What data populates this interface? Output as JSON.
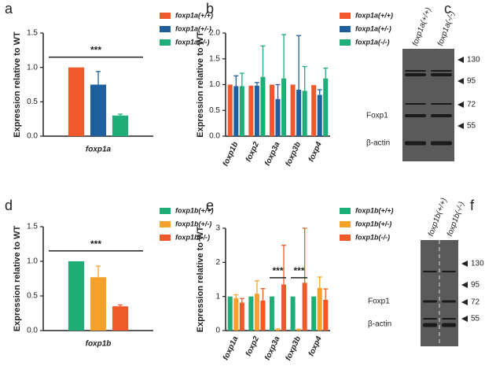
{
  "chart_data": [
    {
      "type": "bar",
      "panel": "a",
      "y_label": "Expression relative to WT",
      "categories": [
        "foxp1a"
      ],
      "series": [
        {
          "name": "foxp1a(+/+)",
          "color": "#f0592b",
          "values": [
            1.0
          ]
        },
        {
          "name": "foxp1a(+/-)",
          "color": "#1f5f9e",
          "values": [
            0.75
          ],
          "errors": [
            0.19
          ]
        },
        {
          "name": "foxp1a(-/-)",
          "color": "#1fae78",
          "values": [
            0.3
          ],
          "errors": [
            0.02
          ]
        }
      ],
      "ylim": [
        0,
        1.5
      ],
      "yticks": [
        {
          "value": 0,
          "label": "0.0"
        },
        {
          "value": 0.5,
          "label": "0.5"
        },
        {
          "value": 1,
          "label": "1.0"
        },
        {
          "value": 1.5,
          "label": "1.5"
        }
      ],
      "annotations": [
        "***"
      ]
    },
    {
      "type": "bar",
      "panel": "b",
      "y_label": "Expression relative to WT",
      "categories": [
        "foxp1b",
        "foxp2",
        "foxp3a",
        "foxp3b",
        "foxp4"
      ],
      "series": [
        {
          "name": "foxp1a(+/+)",
          "color": "#f0592b",
          "values": [
            1.0,
            0.98,
            1.0,
            1.0,
            0.99
          ]
        },
        {
          "name": "foxp1a(+/-)",
          "color": "#1f5f9e",
          "values": [
            0.97,
            0.98,
            0.72,
            0.9,
            0.8
          ],
          "errors": [
            0.2,
            0.06,
            0.28,
            1.05,
            0.1
          ]
        },
        {
          "name": "foxp1a(-/-)",
          "color": "#1fae78",
          "values": [
            0.97,
            1.15,
            1.12,
            0.88,
            1.12
          ],
          "errors": [
            0.25,
            0.6,
            0.85,
            0.47,
            0.2
          ]
        }
      ],
      "ylim": [
        0,
        2
      ],
      "yticks": [
        {
          "value": 0,
          "label": "0.0"
        },
        {
          "value": 0.5,
          "label": "0.5"
        },
        {
          "value": 1,
          "label": "1.0"
        },
        {
          "value": 1.5,
          "label": "1.5"
        },
        {
          "value": 2,
          "label": "2.0"
        }
      ]
    },
    {
      "type": "bar",
      "panel": "d",
      "y_label": "Expression relative to WT",
      "categories": [
        "foxp1b"
      ],
      "series": [
        {
          "name": "foxp1b(+/+)",
          "color": "#1fae78",
          "values": [
            1.0
          ]
        },
        {
          "name": "foxp1b(+/-)",
          "color": "#f7a12c",
          "values": [
            0.77
          ],
          "errors": [
            0.16
          ]
        },
        {
          "name": "foxp1b(-/-)",
          "color": "#ee5a2a",
          "values": [
            0.35
          ],
          "errors": [
            0.02
          ]
        }
      ],
      "ylim": [
        0,
        1.5
      ],
      "yticks": [
        {
          "value": 0,
          "label": "0.0"
        },
        {
          "value": 0.5,
          "label": "0.5"
        },
        {
          "value": 1,
          "label": "1.0"
        },
        {
          "value": 1.5,
          "label": "1.5"
        }
      ],
      "annotations": [
        "***"
      ]
    },
    {
      "type": "bar",
      "panel": "e",
      "y_label": "Expression relative to WT",
      "categories": [
        "foxp1a",
        "foxp2",
        "foxp3a",
        "foxp3b",
        "foxp4"
      ],
      "series": [
        {
          "name": "foxp1b(+/+)",
          "color": "#1fae78",
          "values": [
            1.0,
            1.0,
            1.0,
            1.0,
            1.0
          ]
        },
        {
          "name": "foxp1b(+/-)",
          "color": "#f7a12c",
          "values": [
            0.95,
            1.08,
            0.03,
            0.02,
            1.25
          ],
          "errors": [
            0.1,
            0.38,
            0.02,
            0.02,
            0.32
          ]
        },
        {
          "name": "foxp1b(-/-)",
          "color": "#ee5a2a",
          "values": [
            0.82,
            0.88,
            1.35,
            1.4,
            0.9
          ],
          "errors": [
            0.12,
            0.35,
            1.15,
            1.6,
            0.32
          ]
        }
      ],
      "ylim": [
        0,
        3
      ],
      "yticks": [
        0,
        1,
        2,
        3
      ],
      "annotations": [
        "***",
        "***"
      ]
    }
  ],
  "blots": [
    {
      "panel": "c",
      "columns": [
        "foxp1a(+/+)",
        "foxp1a(-/-)"
      ],
      "markers": [
        130,
        95,
        72,
        55
      ],
      "bands": [
        "Foxp1",
        "β-actin"
      ]
    },
    {
      "panel": "f",
      "columns": [
        "foxp1b(+/+)",
        "foxp1b(-/-)"
      ],
      "markers": [
        130,
        95,
        72,
        55
      ],
      "bands": [
        "Foxp1",
        "β-actin"
      ]
    }
  ]
}
